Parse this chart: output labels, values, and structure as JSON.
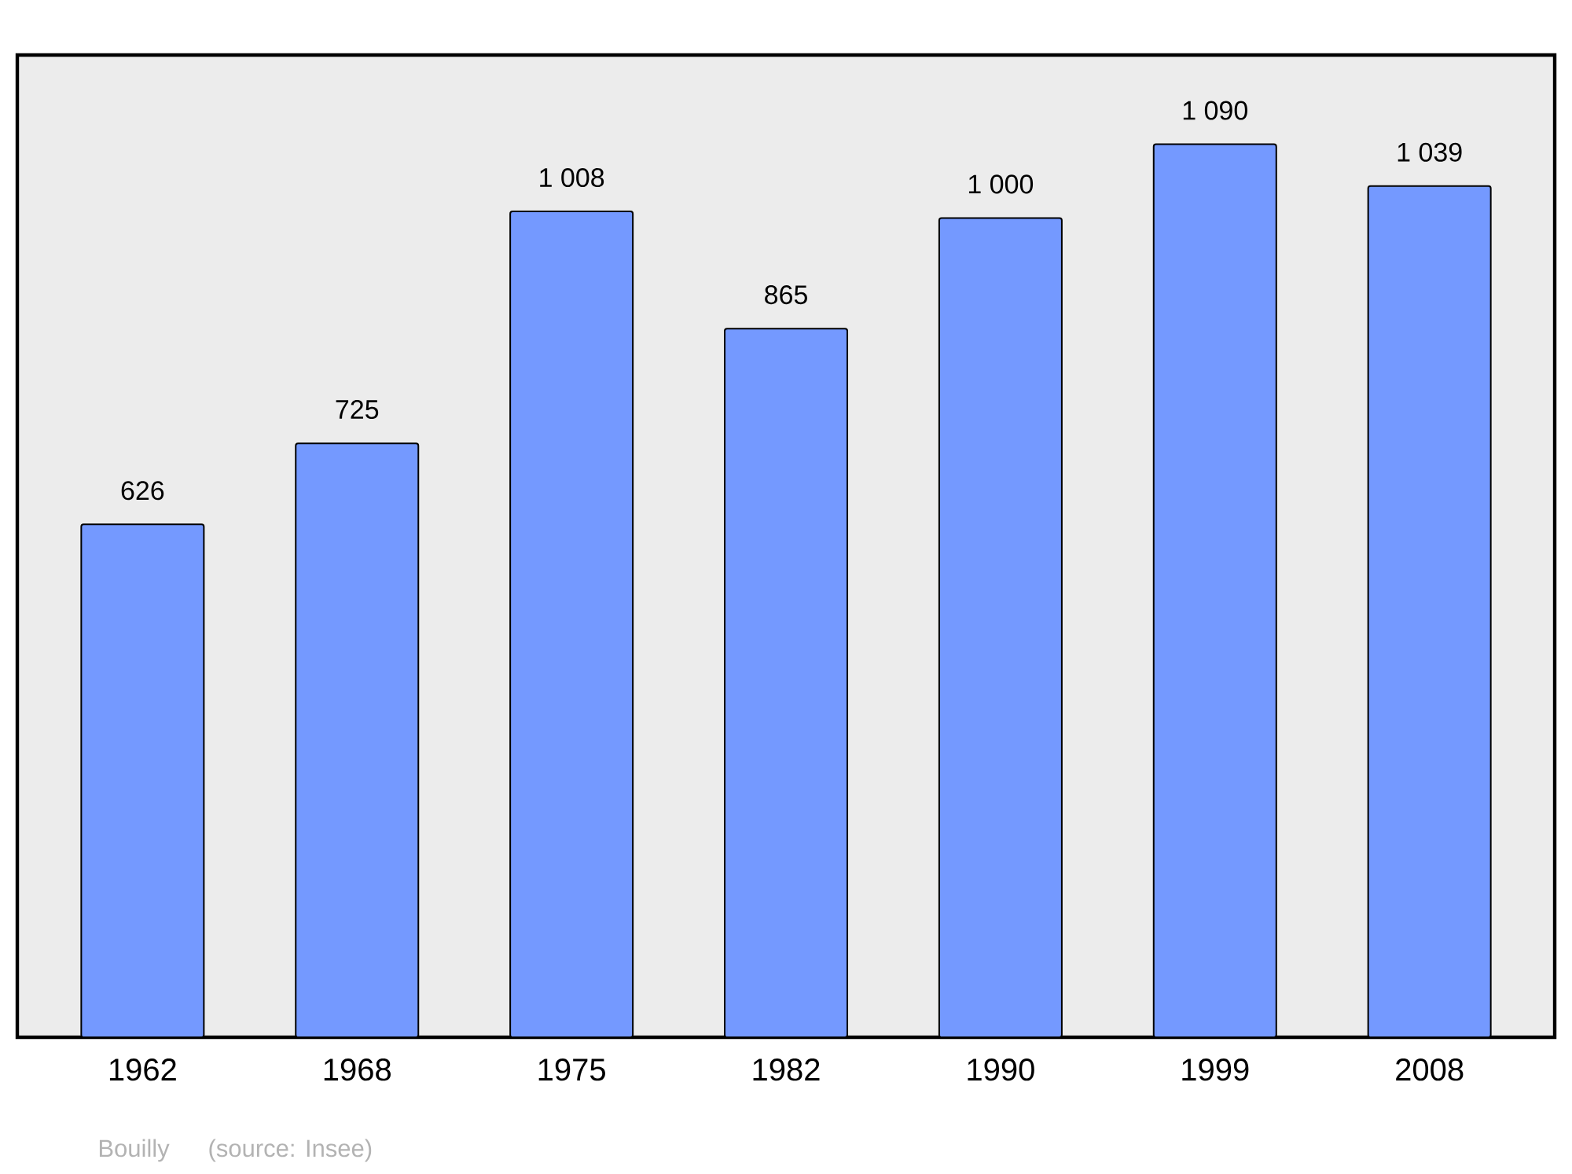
{
  "chart_data": {
    "type": "bar",
    "categories": [
      "1962",
      "1968",
      "1975",
      "1982",
      "1990",
      "1999",
      "2008"
    ],
    "values": [
      626,
      725,
      1008,
      865,
      1000,
      1090,
      1039
    ],
    "value_labels": [
      "626",
      "725",
      "1 008",
      "865",
      "1 000",
      "1 090",
      "1 039"
    ],
    "color": "#7499ff",
    "annotations": [
      "Bouilly",
      "(source: Insee)"
    ]
  }
}
